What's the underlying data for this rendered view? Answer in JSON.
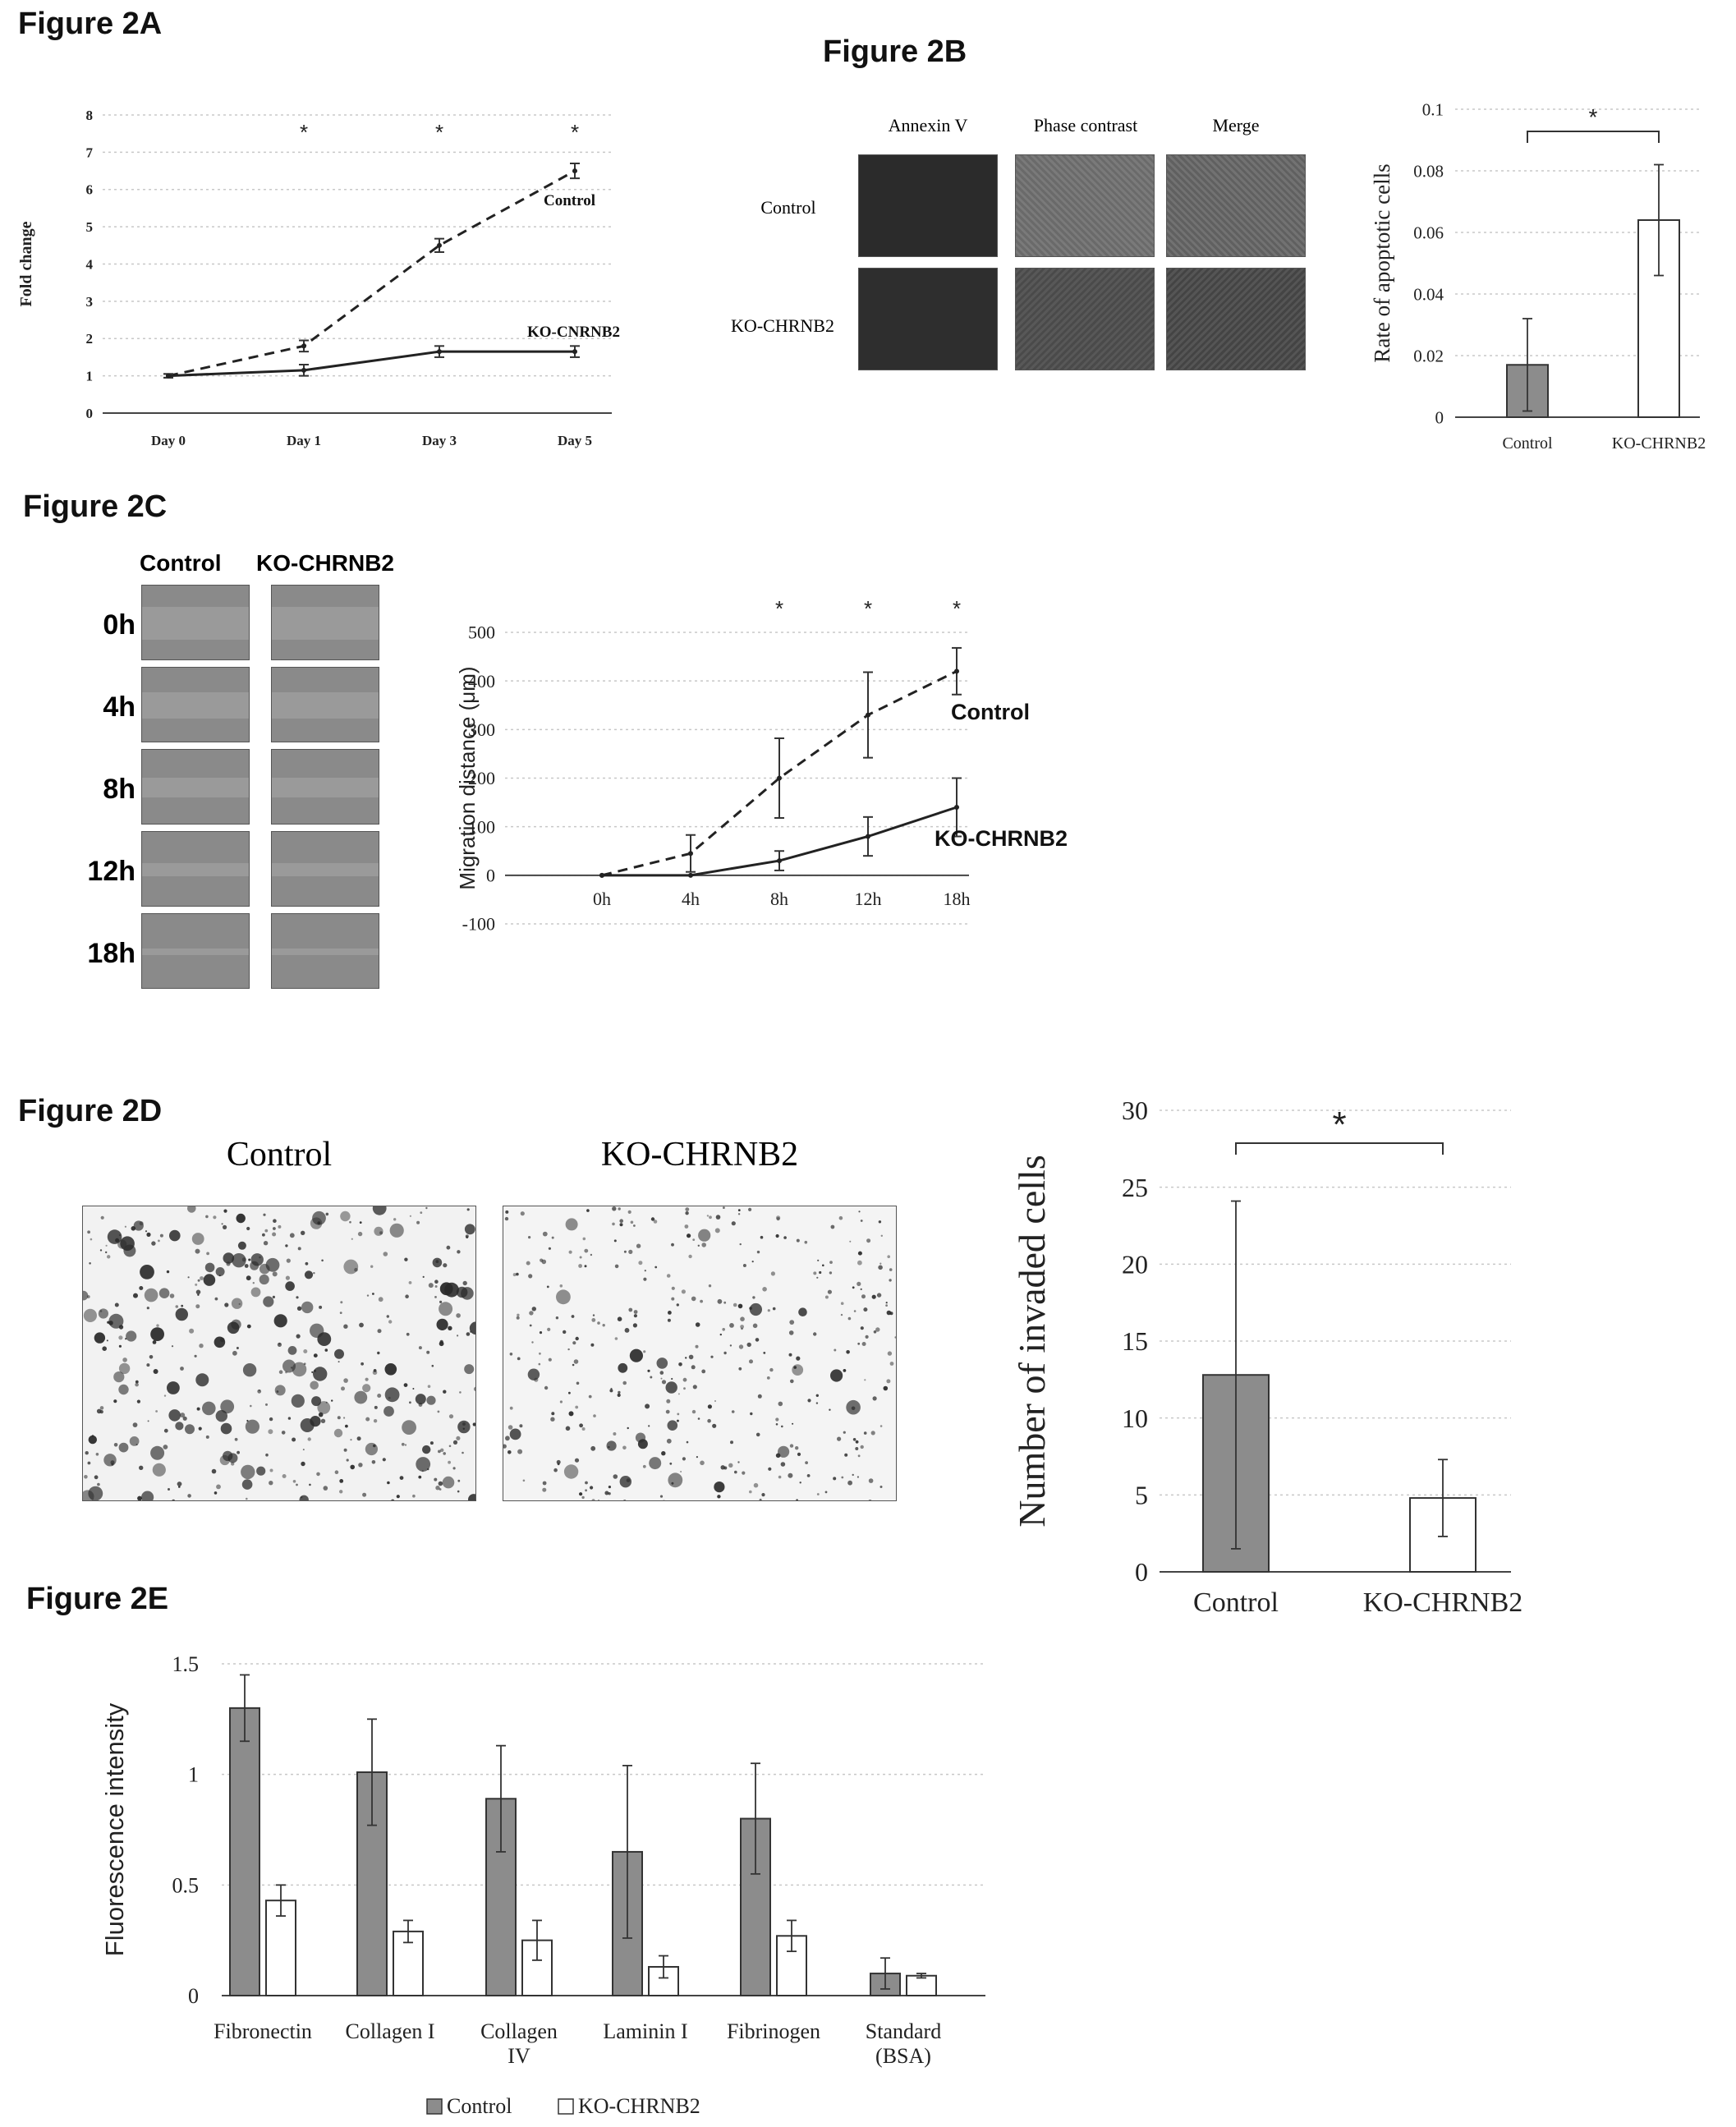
{
  "figures": {
    "a": {
      "title": "Figure 2A"
    },
    "b": {
      "title": "Figure 2B",
      "columns": [
        "Annexin V",
        "Phase contrast",
        "Merge"
      ],
      "rows": [
        "Control",
        "KO-CHRNB2"
      ]
    },
    "c": {
      "title": "Figure 2C",
      "columns": [
        "Control",
        "KO-CHRNB2"
      ],
      "rows": [
        "0h",
        "4h",
        "8h",
        "12h",
        "18h"
      ]
    },
    "d": {
      "title": "Figure 2D",
      "columns": [
        "Control",
        "KO-CHRNB2"
      ]
    },
    "e": {
      "title": "Figure 2E"
    }
  },
  "colors": {
    "control_bar": "#8c8c8c",
    "ko_bar": "#ffffff",
    "axis": "#444444",
    "grid": "#c8c8c8",
    "cell_dark": "#2a2a2a",
    "cell_phase": "#6b6b6b",
    "wound": "#9a9a9a"
  },
  "chart_data": [
    {
      "id": "fig2a",
      "type": "line",
      "categories": [
        "Day 0",
        "Day 1",
        "Day 3",
        "Day 5"
      ],
      "series": [
        {
          "name": "Control",
          "values": [
            1.0,
            1.8,
            4.5,
            6.5
          ],
          "errors": [
            0.05,
            0.15,
            0.18,
            0.2
          ],
          "style": "dashed"
        },
        {
          "name": "KO-CNRNB2",
          "values": [
            1.0,
            1.15,
            1.65,
            1.65
          ],
          "errors": [
            0.05,
            0.15,
            0.15,
            0.15
          ],
          "style": "solid"
        }
      ],
      "ylabel": "Fold change",
      "ylim": [
        0,
        8
      ],
      "yticks": [
        0,
        1,
        2,
        3,
        4,
        5,
        6,
        7,
        8
      ],
      "grid": true,
      "significance": [
        "",
        "*",
        "*",
        "*"
      ]
    },
    {
      "id": "fig2b",
      "type": "bar",
      "categories": [
        "Control",
        "KO-CHRNB2"
      ],
      "values": [
        0.017,
        0.064
      ],
      "errors": [
        0.015,
        0.018
      ],
      "ylabel": "Rate of apoptotic cells",
      "ylim": [
        0,
        0.1
      ],
      "yticks": [
        "0",
        "0.02",
        "0.04",
        "0.06",
        "0.08",
        "0.1"
      ],
      "grid": true,
      "significance": "*"
    },
    {
      "id": "fig2c",
      "type": "line",
      "categories": [
        "0h",
        "4h",
        "8h",
        "12h",
        "18h"
      ],
      "series": [
        {
          "name": "Control",
          "values": [
            0,
            45,
            200,
            330,
            420
          ],
          "errors": [
            0,
            38,
            82,
            88,
            48
          ],
          "style": "dashed"
        },
        {
          "name": "KO-CHRNB2",
          "values": [
            0,
            0,
            30,
            80,
            140
          ],
          "errors": [
            0,
            0,
            20,
            40,
            60
          ],
          "style": "solid"
        }
      ],
      "ylabel": "Migration distance (μm)",
      "ylim": [
        -100,
        500
      ],
      "yticks": [
        -100,
        0,
        100,
        200,
        300,
        400,
        500
      ],
      "grid": true,
      "significance": [
        "",
        "",
        "*",
        "*",
        "*"
      ]
    },
    {
      "id": "fig2d",
      "type": "bar",
      "categories": [
        "Control",
        "KO-CHRNB2"
      ],
      "values": [
        12.8,
        4.8
      ],
      "errors": [
        11.3,
        2.5
      ],
      "ylabel": "Number of invaded cells",
      "ylim": [
        0,
        30
      ],
      "yticks": [
        0,
        5,
        10,
        15,
        20,
        25,
        30
      ],
      "grid": true,
      "significance": "*"
    },
    {
      "id": "fig2e",
      "type": "bar",
      "categories": [
        "Fibronectin",
        "Collagen I",
        "Collagen\nIV",
        "Laminin I",
        "Fibrinogen",
        "Standard\n(BSA)"
      ],
      "series": [
        {
          "name": "Control",
          "values": [
            1.3,
            1.01,
            0.89,
            0.65,
            0.8,
            0.1
          ],
          "errors": [
            0.15,
            0.24,
            0.24,
            0.39,
            0.25,
            0.07
          ]
        },
        {
          "name": "KO-CHRNB2",
          "values": [
            0.43,
            0.29,
            0.25,
            0.13,
            0.27,
            0.09
          ],
          "errors": [
            0.07,
            0.05,
            0.09,
            0.05,
            0.07,
            0.01
          ]
        }
      ],
      "ylabel": "Fluorescence intensity",
      "ylim": [
        0,
        1.5
      ],
      "yticks": [
        "0",
        "0.5",
        "1",
        "1.5"
      ],
      "grid": true,
      "legend": "bottom"
    }
  ]
}
